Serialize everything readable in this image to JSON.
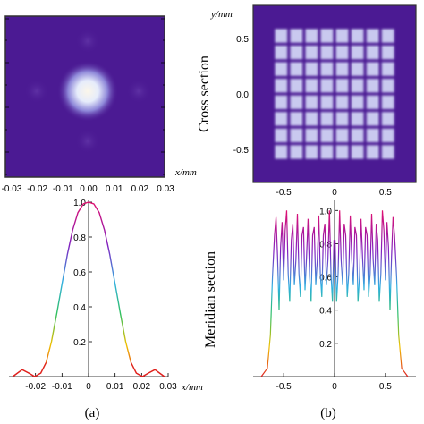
{
  "chart_data": [
    {
      "id": "a-cross",
      "type": "heatmap",
      "xlabel": "x/mm",
      "ticks": [
        "-0.03",
        "-0.02",
        "-0.01",
        "0.00",
        "0.01",
        "0.02",
        "0.03"
      ],
      "xlim": [
        -0.03,
        0.03
      ],
      "ylim": [
        -0.03,
        0.03
      ],
      "background_color": "#4b1a93",
      "peak_color": "#fbf6ea",
      "description_points": [
        {
          "x": 0.0,
          "y": 0.0,
          "intensity": 1.0
        },
        {
          "x": -0.02,
          "y": 0.0,
          "intensity": 0.05
        },
        {
          "x": 0.02,
          "y": 0.0,
          "intensity": 0.05
        },
        {
          "x": 0.0,
          "y": -0.02,
          "intensity": 0.05
        },
        {
          "x": 0.0,
          "y": 0.02,
          "intensity": 0.05
        }
      ]
    },
    {
      "id": "b-cross",
      "type": "heatmap",
      "ylabel": "y/mm",
      "xticks": [
        "-0.5",
        "0",
        "0.5"
      ],
      "yticks": [
        "0.5",
        "0.0",
        "-0.5"
      ],
      "xlim": [
        -0.8,
        0.8
      ],
      "ylim": [
        -0.8,
        0.8
      ],
      "grid_cells": 8,
      "extent": [
        -0.6,
        0.6
      ],
      "background_color": "#4b1a93",
      "cell_color": "#d6dcf8"
    },
    {
      "id": "a-meridian",
      "type": "line",
      "xlabel": "x/mm",
      "xticks": [
        "-0.02",
        "-0.01",
        "0",
        "0.01",
        "0.02",
        "0.03"
      ],
      "yticks": [
        "1.0",
        "0.8",
        "0.6",
        "0.4",
        "0.2"
      ],
      "xlim": [
        -0.03,
        0.03
      ],
      "ylim": [
        0,
        1.0
      ],
      "x": [
        -0.0286,
        -0.025,
        -0.0225,
        -0.0203,
        -0.018,
        -0.016,
        -0.014,
        -0.012,
        -0.01,
        -0.008,
        -0.006,
        -0.004,
        -0.002,
        0.0,
        0.002,
        0.004,
        0.006,
        0.008,
        0.01,
        0.012,
        0.014,
        0.016,
        0.018,
        0.0203,
        0.0225,
        0.025,
        0.0286
      ],
      "y": [
        0.0,
        0.04,
        0.02,
        0.0,
        0.02,
        0.08,
        0.2,
        0.36,
        0.53,
        0.7,
        0.84,
        0.94,
        0.99,
        1.0,
        0.99,
        0.94,
        0.84,
        0.7,
        0.53,
        0.36,
        0.2,
        0.08,
        0.02,
        0.0,
        0.02,
        0.04,
        0.0
      ],
      "series_colors": [
        "#e02020",
        "#f0c000",
        "#30c060",
        "#30b0e0",
        "#8020c0",
        "#e01070"
      ]
    },
    {
      "id": "b-meridian",
      "type": "line",
      "xticks": [
        "-0.5",
        "0",
        "0.5"
      ],
      "yticks": [
        "1.0",
        "0.8",
        "0.6",
        "0.4",
        "0.2"
      ],
      "xlim": [
        -0.8,
        0.8
      ],
      "ylim": [
        0,
        1.05
      ],
      "x": [
        -0.72,
        -0.66,
        -0.63,
        -0.61,
        -0.59,
        -0.575,
        -0.56,
        -0.545,
        -0.53,
        -0.515,
        -0.5,
        -0.485,
        -0.47,
        -0.455,
        -0.44,
        -0.425,
        -0.41,
        -0.395,
        -0.38,
        -0.365,
        -0.35,
        -0.335,
        -0.32,
        -0.305,
        -0.29,
        -0.275,
        -0.26,
        -0.245,
        -0.23,
        -0.215,
        -0.2,
        -0.185,
        -0.17,
        -0.155,
        -0.14,
        -0.125,
        -0.11,
        -0.095,
        -0.08,
        -0.065,
        -0.05,
        -0.035,
        -0.02,
        -0.005,
        0.005,
        0.02,
        0.035,
        0.05,
        0.065,
        0.08,
        0.095,
        0.11,
        0.125,
        0.14,
        0.155,
        0.17,
        0.185,
        0.2,
        0.215,
        0.23,
        0.245,
        0.26,
        0.275,
        0.29,
        0.305,
        0.32,
        0.335,
        0.35,
        0.365,
        0.38,
        0.395,
        0.41,
        0.425,
        0.44,
        0.455,
        0.47,
        0.485,
        0.5,
        0.515,
        0.53,
        0.545,
        0.56,
        0.575,
        0.59,
        0.61,
        0.63,
        0.66,
        0.72
      ],
      "y": [
        0.0,
        0.05,
        0.25,
        0.6,
        0.85,
        0.96,
        0.72,
        0.4,
        0.78,
        0.93,
        0.58,
        0.88,
        1.0,
        0.62,
        0.45,
        0.82,
        0.92,
        0.55,
        0.7,
        0.98,
        0.62,
        0.48,
        0.85,
        0.9,
        0.52,
        0.72,
        0.95,
        0.6,
        0.45,
        0.85,
        0.9,
        0.55,
        0.7,
        0.97,
        0.62,
        0.48,
        0.85,
        0.92,
        0.55,
        0.7,
        1.0,
        0.62,
        0.45,
        0.82,
        0.82,
        0.45,
        0.62,
        1.0,
        0.7,
        0.55,
        0.92,
        0.85,
        0.48,
        0.62,
        0.97,
        0.7,
        0.55,
        0.9,
        0.85,
        0.45,
        0.6,
        0.95,
        0.72,
        0.52,
        0.9,
        0.85,
        0.48,
        0.62,
        0.98,
        0.7,
        0.55,
        0.92,
        0.82,
        0.45,
        0.62,
        1.0,
        0.88,
        0.58,
        0.93,
        0.78,
        0.4,
        0.72,
        0.96,
        0.85,
        0.6,
        0.25,
        0.05,
        0.0
      ]
    }
  ],
  "labels": {
    "cross_section": "Cross section",
    "meridian_section": "Meridian section",
    "caption_a": "(a)",
    "caption_b": "(b)"
  }
}
